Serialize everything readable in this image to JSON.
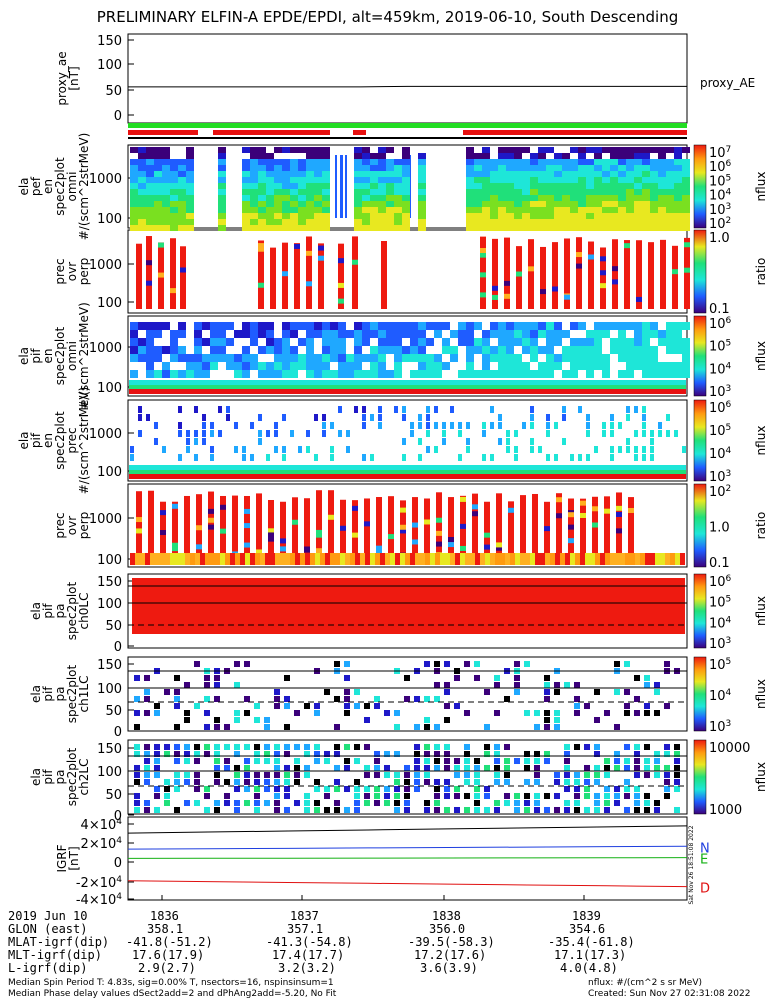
{
  "title": "PRELIMINARY ELFIN-A EPDE/EPDI, alt=459km, 2019-06-10, South Descending",
  "chart_data": [
    {
      "type": "line",
      "name": "proxy_ae",
      "ylabel": [
        "proxy_ae",
        "[nT]"
      ],
      "yticks": [
        "150",
        "100",
        "50",
        "0"
      ],
      "ylim": [
        -10,
        160
      ],
      "legend": "proxy_AE",
      "series": [
        {
          "name": "proxy_AE",
          "values": [
            59,
            59,
            59,
            59,
            59,
            59,
            60,
            60,
            60,
            60,
            60,
            60,
            60
          ]
        }
      ]
    },
    {
      "type": "heatmap",
      "name": "ela pef en spec2plot omni",
      "ylabel": [
        "ela",
        "pef",
        "en",
        "spec2plot",
        "omni",
        "#/(scm^2strMeV)"
      ],
      "yticks": [
        "1000",
        "100"
      ],
      "colorbar": {
        "label": "nflux",
        "ticks": [
          "10^7",
          "10^6",
          "10^5",
          "10^4",
          "10^3",
          "10^2"
        ]
      }
    },
    {
      "type": "heatmap",
      "name": "prec ovr perp (electron)",
      "ylabel": [
        "prec",
        "ovr",
        "perp"
      ],
      "yticks": [
        "1000",
        "100"
      ],
      "colorbar": {
        "label": "ratio",
        "ticks": [
          "1.0",
          "0.1"
        ]
      }
    },
    {
      "type": "heatmap",
      "name": "ela pif en spec2plot omni",
      "ylabel": [
        "ela",
        "pif",
        "en",
        "spec2plot",
        "omni",
        "#/(scm^2strMeV)"
      ],
      "yticks": [
        "1000",
        "100"
      ],
      "colorbar": {
        "label": "nflux",
        "ticks": [
          "10^6",
          "10^5",
          "10^4",
          "10^3"
        ]
      }
    },
    {
      "type": "heatmap",
      "name": "ela pif en spec2plot prec",
      "ylabel": [
        "ela",
        "pif",
        "en",
        "spec2plot",
        "prec",
        "#/(scm^2strMeV)"
      ],
      "yticks": [
        "1000",
        "100"
      ],
      "colorbar": {
        "label": "nflux",
        "ticks": [
          "10^6",
          "10^5",
          "10^4",
          "10^3"
        ]
      }
    },
    {
      "type": "heatmap",
      "name": "prec ovr perp (ion)",
      "ylabel": [
        "prec",
        "ovr",
        "perp"
      ],
      "yticks": [
        "1000",
        "100"
      ],
      "colorbar": {
        "label": "ratio",
        "ticks": [
          "10^2",
          "1.0",
          "0.1"
        ]
      }
    },
    {
      "type": "heatmap",
      "name": "ela pif pa spec2plot ch0LC",
      "ylabel": [
        "ela",
        "pif",
        "pa",
        "spec2plot",
        "ch0LC"
      ],
      "yticks": [
        "150",
        "100",
        "50",
        "0"
      ],
      "colorbar": {
        "label": "nflux",
        "ticks": [
          "10^6",
          "10^5",
          "10^4",
          "10^3"
        ]
      }
    },
    {
      "type": "heatmap",
      "name": "ela pif pa spec2plot ch1LC",
      "ylabel": [
        "ela",
        "pif",
        "pa",
        "spec2plot",
        "ch1LC"
      ],
      "yticks": [
        "150",
        "100",
        "50",
        "0"
      ],
      "colorbar": {
        "label": "nflux",
        "ticks": [
          "10^5",
          "10^4",
          "10^3"
        ]
      }
    },
    {
      "type": "heatmap",
      "name": "ela pif pa spec2plot ch2LC",
      "ylabel": [
        "ela",
        "pif",
        "pa",
        "spec2plot",
        "ch2LC"
      ],
      "yticks": [
        "150",
        "100",
        "50",
        "0"
      ],
      "colorbar": {
        "label": "nflux",
        "ticks": [
          "10000",
          "1000"
        ]
      }
    },
    {
      "type": "line",
      "name": "IGRF",
      "ylabel": [
        "IGRF",
        "[nT]"
      ],
      "yticks": [
        "4×10^4",
        "2×10^4",
        "0",
        "-2×10^4",
        "-4×10^4"
      ],
      "ylim": [
        -40000,
        40000
      ],
      "series": [
        {
          "name": "",
          "color": "#000000",
          "values": [
            24500,
            25500,
            26500,
            27500,
            28500,
            29500,
            30500,
            31500
          ]
        },
        {
          "name": "N",
          "color": "#1f3fdf",
          "values": [
            9000,
            9400,
            9800,
            10200,
            10600,
            11000,
            11400,
            11800
          ]
        },
        {
          "name": "E",
          "color": "#13b013",
          "values": [
            100,
            200,
            300,
            400,
            500,
            600,
            700,
            800
          ]
        },
        {
          "name": "D",
          "color": "#e01010",
          "values": [
            -21500,
            -22300,
            -23100,
            -23900,
            -24700,
            -25500,
            -26300,
            -27100
          ]
        }
      ]
    }
  ],
  "sidenote": "Sat Nov 26 18:51:08 2022",
  "ephemeris": {
    "rows": [
      {
        "label": "2019 Jun 10",
        "vals": [
          "1836",
          "1837",
          "1838",
          "1839"
        ]
      },
      {
        "label": "GLON (east)",
        "vals": [
          "358.1",
          "357.1",
          "356.0",
          "354.6"
        ]
      },
      {
        "label": "MLAT-igrf(dip)",
        "vals": [
          "-41.8(-51.2)",
          "-41.3(-54.8)",
          "-39.5(-58.3)",
          "-35.4(-61.8)"
        ]
      },
      {
        "label": "MLT-igrf(dip)",
        "vals": [
          "17.6(17.9)",
          "17.4(17.7)",
          "17.2(17.6)",
          "17.1(17.3)"
        ]
      },
      {
        "label": "L-igrf(dip)",
        "vals": [
          "2.9(2.7)",
          "3.2(3.2)",
          "3.6(3.9)",
          "4.0(4.8)"
        ]
      }
    ]
  },
  "footer": {
    "left1": "Median Spin Period T: 4.83s, sig=0.00% T, nsectors=16, nspinsinsum=1",
    "left2": "Median Phase delay values dSect2add=2 and dPhAng2add=-5.20, No Fit",
    "right1": "nflux: #/(cm^2 s sr MeV)",
    "right2": "Created: Sun Nov 27 02:31:08 2022"
  }
}
